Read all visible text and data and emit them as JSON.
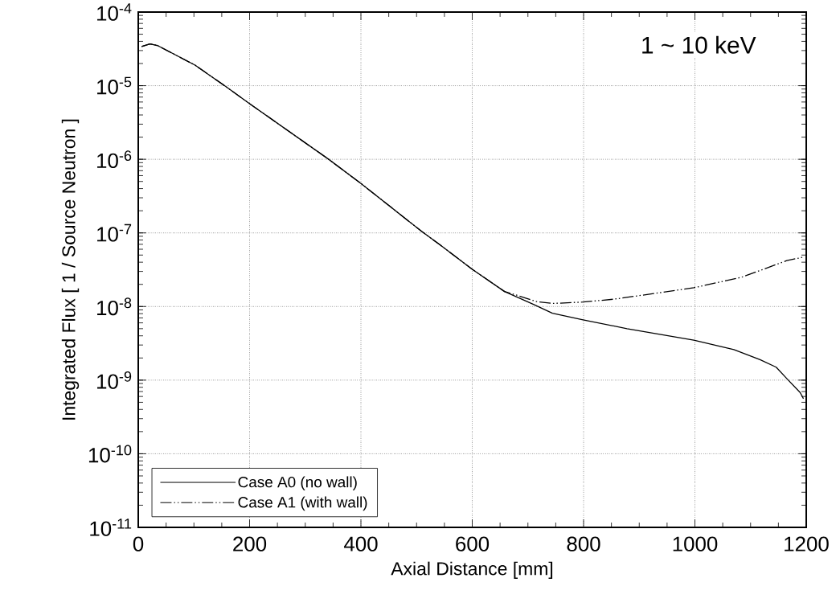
{
  "chart_data": {
    "type": "line",
    "xlabel": "Axial Distance [mm]",
    "ylabel": "Integrated Flux  [ 1 / Source Neutron ]",
    "annotations": [
      "1 ~ 10 keV"
    ],
    "series": [
      {
        "name": "Case A0 (no wall)",
        "color": "#000000",
        "line_style": "solid",
        "x": [
          6,
          21,
          35,
          102,
          155,
          200,
          342,
          400,
          509,
          543,
          600,
          658,
          710,
          744,
          799,
          878,
          998,
          1070,
          1117,
          1146,
          1165,
          1189,
          1195
        ],
        "values": [
          3.4e-05,
          3.7e-05,
          3.5e-05,
          1.9e-05,
          1e-05,
          5.7e-06,
          1e-06,
          4.7e-07,
          1.05e-07,
          6.8e-08,
          3.2e-08,
          1.6e-08,
          1.07e-08,
          8.1e-09,
          6.6e-09,
          5e-09,
          3.5e-09,
          2.6e-09,
          1.9e-09,
          1.5e-09,
          1.05e-09,
          6.8e-10,
          5.6e-10
        ]
      },
      {
        "name": "Case A1 (with wall)",
        "color": "#000000",
        "line_style": "dashdotdot",
        "x": [
          6,
          21,
          35,
          102,
          155,
          200,
          342,
          400,
          509,
          543,
          600,
          658,
          677,
          715,
          744,
          799,
          855,
          926,
          998,
          1084,
          1165,
          1195
        ],
        "values": [
          3.4e-05,
          3.7e-05,
          3.5e-05,
          1.9e-05,
          1e-05,
          5.7e-06,
          1e-06,
          4.7e-07,
          1.05e-07,
          6.8e-08,
          3.2e-08,
          1.6e-08,
          1.45e-08,
          1.17e-08,
          1.1e-08,
          1.15e-08,
          1.26e-08,
          1.5e-08,
          1.8e-08,
          2.5e-08,
          4.2e-08,
          4.7e-08
        ]
      }
    ],
    "xlim": [
      0,
      1200
    ],
    "ylim": [
      1e-11,
      0.0001
    ],
    "xticks": [
      0,
      200,
      400,
      600,
      800,
      1000,
      1200
    ],
    "yticks": [
      {
        "value": 1e-11,
        "label": "10$^{-11}$"
      },
      {
        "value": 1e-10,
        "label": "10$^{-10}$"
      },
      {
        "value": 1e-09,
        "label": "10$^{-9}$"
      },
      {
        "value": 1e-08,
        "label": "10$^{-8}$"
      },
      {
        "value": 1e-07,
        "label": "10$^{-7}$"
      },
      {
        "value": 1e-06,
        "label": "10$^{-6}$"
      },
      {
        "value": 1e-05,
        "label": "10$^{-5}$"
      },
      {
        "value": 0.0001,
        "label": "10$^{-4}$"
      }
    ],
    "log": "y",
    "grid": true,
    "legend": "bottom left",
    "marker": "none"
  }
}
